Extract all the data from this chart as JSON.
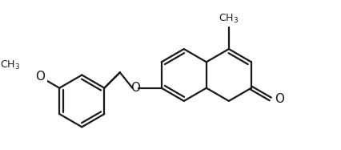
{
  "bg_color": "#ffffff",
  "line_color": "#1a1a1a",
  "line_width": 1.6,
  "font_size": 10,
  "figsize": [
    4.27,
    1.87
  ],
  "dpi": 100,
  "xlim": [
    -4.5,
    5.5
  ],
  "ylim": [
    -2.8,
    2.8
  ]
}
